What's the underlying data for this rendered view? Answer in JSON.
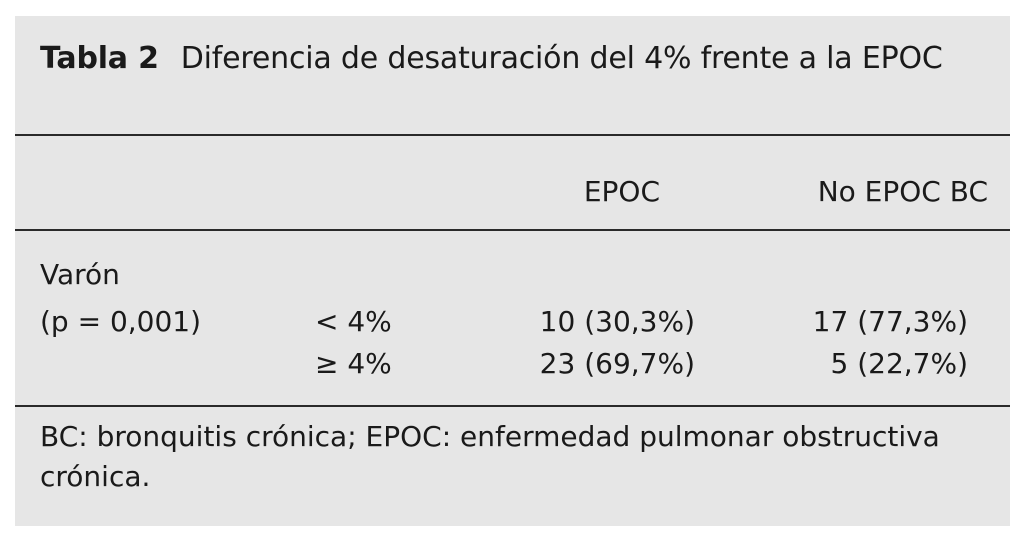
{
  "table": {
    "label": "Tabla 2",
    "title": "Diferencia de desaturación del 4% frente a la EPOC",
    "columns": [
      "EPOC",
      "No EPOC BC"
    ],
    "group": {
      "name": "Varón",
      "p_value": "(p = 0,001)"
    },
    "rows": [
      {
        "threshold": "< 4%",
        "epoc": "10 (30,3%)",
        "no_epoc_bc": "17 (77,3%)"
      },
      {
        "threshold": "≥ 4%",
        "epoc": "23 (69,7%)",
        "no_epoc_bc": "5 (22,7%)"
      }
    ],
    "footnote": "BC: bronquitis crónica; EPOC: enfermedad pulmonar obstructiva crónica."
  }
}
